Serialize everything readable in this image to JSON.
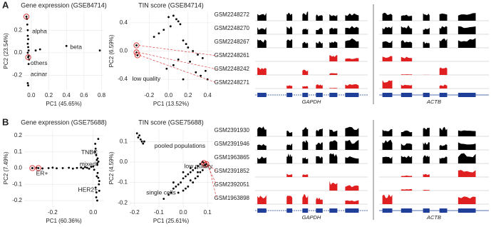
{
  "panel_labels": [
    "A",
    "B"
  ],
  "annotation_color": "#d62728",
  "chart_data": [
    {
      "type": "scatter",
      "title": "Gene expression (GSE84714)",
      "x_label": "PC1 (45.65%)",
      "y_label": "PC2 (23.54%)",
      "xlim": [
        -0.08,
        0.82
      ],
      "ylim": [
        -0.33,
        0.36
      ],
      "xticks": [
        {
          "value": 0,
          "label": "0.0"
        },
        0.2,
        0.4,
        0.6,
        0.8
      ],
      "yticks": [
        -0.2,
        {
          "value": 0,
          "label": "0.0"
        },
        0.2
      ],
      "grid": true,
      "series": [
        {
          "color": "#000000",
          "marker": "dot",
          "x": [
            -0.05,
            -0.045,
            -0.04,
            -0.04,
            -0.035,
            -0.04,
            -0.035,
            -0.03,
            -0.04,
            -0.03,
            -0.025,
            -0.03,
            0.05,
            0.1,
            0.4,
            0.78,
            -0.04,
            -0.035
          ],
          "y": [
            0.3,
            0.25,
            0.2,
            0.15,
            0.12,
            0.08,
            0.05,
            0.02,
            0.0,
            -0.03,
            -0.06,
            -0.1,
            0.02,
            0.03,
            0.06,
            0.02,
            -0.27,
            -0.29
          ]
        },
        {
          "color": "#d62728",
          "marker": "ring",
          "x": [
            -0.055,
            -0.035
          ],
          "y": [
            0.32,
            -0.04
          ]
        }
      ],
      "annotations": [
        "alpha",
        "beta",
        "others",
        "acinar"
      ]
    },
    {
      "type": "scatter",
      "title": "TIN score (GSE84714)",
      "x_label": "PC1 (13.52%)",
      "y_label": "PC2 (6.59%)",
      "xlim": [
        -0.4,
        0.45
      ],
      "ylim": [
        -0.55,
        0.55
      ],
      "xticks": [
        -0.2,
        {
          "value": 0,
          "label": "0.0"
        },
        0.2,
        0.4
      ],
      "yticks": [
        -0.4,
        {
          "value": 0,
          "label": "0.0"
        },
        0.4
      ],
      "grid": true,
      "series": [
        {
          "color": "#000000",
          "marker": "dot",
          "x": [
            0.0,
            0.05,
            0.08,
            0.1,
            0.12,
            -0.05,
            -0.1,
            -0.15,
            0.02,
            0.15,
            0.18,
            0.2,
            0.25,
            0.3,
            0.35,
            0.22,
            0.1,
            0.05,
            -0.02,
            0.28,
            0.38,
            0.4,
            0.33,
            0.15
          ],
          "y": [
            0.48,
            0.5,
            0.45,
            0.42,
            0.38,
            0.3,
            0.25,
            0.2,
            0.35,
            0.15,
            0.1,
            0.05,
            0.0,
            -0.05,
            -0.1,
            -0.15,
            -0.12,
            -0.2,
            -0.25,
            -0.3,
            -0.28,
            -0.4,
            -0.35,
            -0.4
          ]
        },
        {
          "color": "#d62728",
          "marker": "ring",
          "x": [
            -0.33,
            -0.33,
            -0.32
          ],
          "y": [
            0.08,
            -0.02,
            -0.06
          ]
        }
      ],
      "annotations": [
        "low quality"
      ]
    },
    {
      "type": "scatter",
      "title": "Gene expression (GSE75688)",
      "x_label": "PC1 (60.36%)",
      "y_label": "PC2 (7.49%)",
      "xlim": [
        -0.34,
        0.05
      ],
      "ylim": [
        -0.24,
        0.24
      ],
      "xticks": [
        -0.2,
        {
          "value": 0,
          "label": "0.0"
        }
      ],
      "yticks": [
        -0.2,
        -0.1,
        {
          "value": 0,
          "label": "0.0"
        },
        0.1,
        0.2
      ],
      "grid": true,
      "series": [
        {
          "color": "#000000",
          "marker": "dot",
          "x": [
            -0.3,
            -0.28,
            -0.25,
            -0.22,
            -0.2,
            -0.18,
            -0.15,
            -0.12,
            -0.1,
            -0.08,
            -0.06,
            -0.05,
            -0.04,
            -0.03,
            -0.02,
            -0.01,
            0.0,
            0.005,
            0.01,
            0.012,
            0.015,
            0.018,
            0.02,
            0.022,
            0.025,
            0.028,
            0.03,
            0.015,
            0.02,
            0.025,
            0.01,
            0.03,
            0.02,
            0.018,
            0.022,
            0.012,
            0.026,
            0.016
          ],
          "y": [
            0,
            0.002,
            -0.002,
            0,
            0.003,
            -0.001,
            0,
            0.002,
            -0.003,
            0.001,
            0.004,
            -0.002,
            0.006,
            0.002,
            -0.004,
            0.008,
            0.01,
            -0.01,
            0.15,
            0.12,
            0.08,
            0.05,
            0.03,
            -0.03,
            -0.06,
            -0.1,
            -0.14,
            -0.18,
            -0.2,
            0.18,
            0.1,
            -0.08,
            0.02,
            -0.05,
            0.06,
            -0.12,
            0.04,
            -0.15
          ]
        },
        {
          "color": "#d62728",
          "marker": "ring",
          "x": [
            -0.3,
            -0.27
          ],
          "y": [
            0,
            0
          ]
        }
      ],
      "annotations": [
        "TNBC",
        "mixed",
        "ER+",
        "HER2+"
      ]
    },
    {
      "type": "scatter",
      "title": "TIN score (GSE75688)",
      "x_label": "PC1 (25.61%)",
      "y_label": "PC2 (4.59%)",
      "xlim": [
        -0.22,
        0.12
      ],
      "ylim": [
        -0.22,
        0.16
      ],
      "xticks": [
        -0.2,
        -0.1,
        {
          "value": 0,
          "label": "0.0"
        },
        0.1
      ],
      "yticks": [
        -0.2,
        -0.1,
        {
          "value": 0,
          "label": "0.0"
        },
        0.1
      ],
      "grid": true,
      "series": [
        {
          "color": "#000000",
          "marker": "dot",
          "x": [
            -0.19,
            -0.185,
            -0.18,
            -0.175,
            -0.17,
            -0.165,
            -0.16,
            -0.08,
            -0.06,
            -0.05,
            -0.04,
            -0.03,
            -0.02,
            -0.01,
            0.0,
            0.01,
            0.02,
            0.03,
            0.04,
            0.05,
            0.06,
            0.07,
            0.08,
            0.0,
            0.02,
            0.04,
            0.06,
            -0.02,
            0.01,
            0.03,
            0.05,
            0.07,
            -0.04,
            0.0,
            0.03,
            0.06,
            0.08
          ],
          "y": [
            0.14,
            0.12,
            0.13,
            0.11,
            0.1,
            0.09,
            0.1,
            -0.18,
            -0.16,
            -0.15,
            -0.13,
            -0.12,
            -0.11,
            -0.1,
            -0.08,
            -0.07,
            -0.06,
            -0.05,
            -0.04,
            -0.03,
            -0.02,
            -0.01,
            0.0,
            -0.14,
            -0.12,
            -0.1,
            -0.07,
            -0.15,
            -0.13,
            -0.09,
            -0.08,
            -0.05,
            -0.1,
            -0.05,
            -0.03,
            -0.05,
            -0.04
          ]
        },
        {
          "color": "#d62728",
          "marker": "ring",
          "x": [
            0.085,
            0.09,
            0.095
          ],
          "y": [
            -0.005,
            -0.015,
            -0.01
          ]
        }
      ],
      "annotations": [
        "pooled populations",
        "low quality",
        "single cells"
      ]
    }
  ],
  "tracks": [
    {
      "genes": [
        "GAPDH",
        "ACTB"
      ],
      "gene_color": "#1f3f99",
      "samples": [
        {
          "name": "GSM2248272",
          "color": "#000000"
        },
        {
          "name": "GSM2248270",
          "color": "#000000"
        },
        {
          "name": "GSM2248267",
          "color": "#000000"
        },
        {
          "name": "GSM2248261",
          "color": "#e02020"
        },
        {
          "name": "GSM2248242",
          "color": "#e02020"
        },
        {
          "name": "GSM2248271",
          "color": "#e02020"
        }
      ]
    },
    {
      "genes": [
        "GAPDH",
        "ACTB"
      ],
      "gene_color": "#1f3f99",
      "samples": [
        {
          "name": "GSM2391930",
          "color": "#000000"
        },
        {
          "name": "GSM2391946",
          "color": "#000000"
        },
        {
          "name": "GSM1963865",
          "color": "#000000"
        },
        {
          "name": "GSM2391852",
          "color": "#e02020"
        },
        {
          "name": "GSM2392051",
          "color": "#e02020"
        },
        {
          "name": "GSM1963898",
          "color": "#e02020"
        }
      ]
    }
  ]
}
